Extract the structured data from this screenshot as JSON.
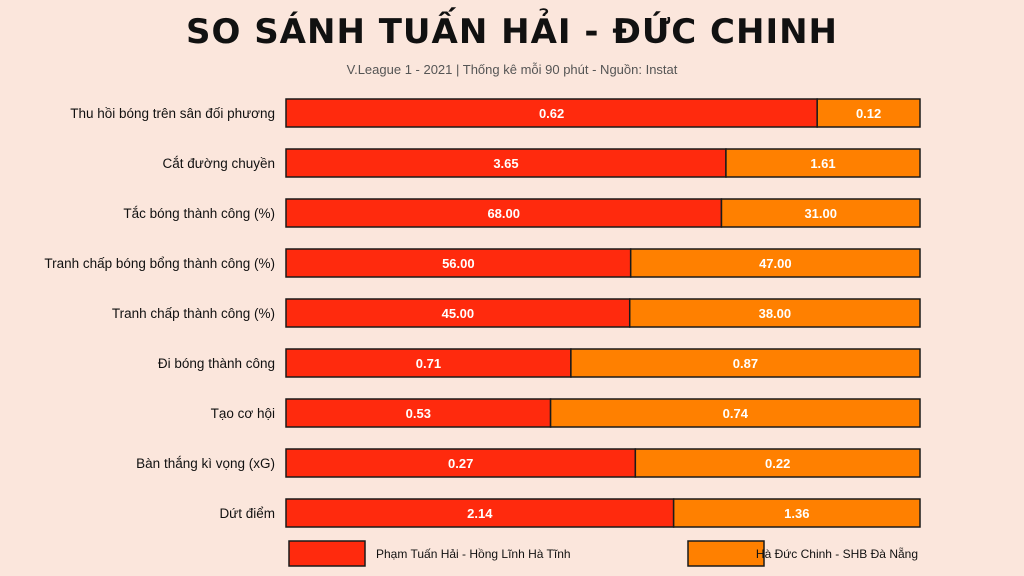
{
  "title": "SO SÁNH TUẤN HẢI - ĐỨC CHINH",
  "subtitle": "V.League 1 - 2021 | Thống kê mỗi 90 phút - Nguồn: Instat",
  "colors": {
    "series_a": "#ff2a0d",
    "series_b": "#ff8000",
    "background": "#fbe6dc",
    "border": "#1a1a1a"
  },
  "chart_data": {
    "type": "bar",
    "orientation": "horizontal",
    "stacked": "normalized",
    "categories": [
      "Thu hồi bóng trên sân đối phương",
      "Cắt đường chuyền",
      "Tắc bóng thành công (%)",
      "Tranh chấp bóng bổng thành công (%)",
      "Tranh chấp thành công (%)",
      "Đi bóng thành công",
      "Tạo cơ hội",
      "Bàn thắng kì vọng (xG)",
      "Dứt điểm"
    ],
    "series": [
      {
        "name": "Phạm Tuấn Hải - Hồng Lĩnh Hà Tĩnh",
        "values": [
          0.62,
          3.65,
          68.0,
          56.0,
          45.0,
          0.71,
          0.53,
          0.27,
          2.14
        ]
      },
      {
        "name": "Hà Đức Chinh - SHB Đà Nẵng",
        "values": [
          0.12,
          1.61,
          31.0,
          47.0,
          38.0,
          0.87,
          0.74,
          0.22,
          1.36
        ]
      }
    ],
    "value_labels": [
      [
        "0.62",
        "3.65",
        "68.00",
        "56.00",
        "45.00",
        "0.71",
        "0.53",
        "0.27",
        "2.14"
      ],
      [
        "0.12",
        "1.61",
        "31.00",
        "47.00",
        "38.00",
        "0.87",
        "0.74",
        "0.22",
        "1.36"
      ]
    ],
    "legend_position": "bottom",
    "grid": false
  }
}
